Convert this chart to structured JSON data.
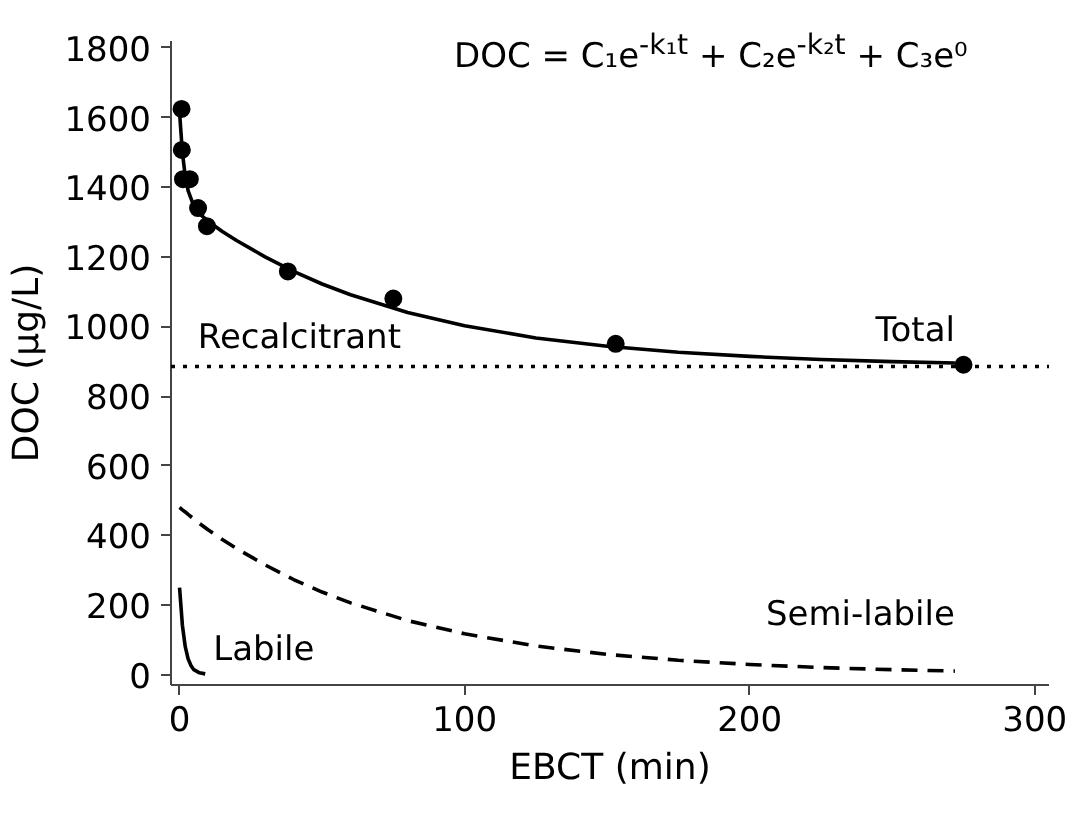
{
  "chart_data": {
    "type": "line",
    "xlabel": "EBCT (min)",
    "ylabel": "DOC (µg/L)",
    "xlim": [
      -3,
      305
    ],
    "ylim": [
      -30,
      1820
    ],
    "xticks": [
      0,
      100,
      200,
      300
    ],
    "yticks": [
      0,
      200,
      400,
      600,
      800,
      1000,
      1200,
      1400,
      1600,
      1800
    ],
    "grid": false,
    "series": [
      {
        "type": "scatter",
        "marker": "circle",
        "color": "#000000",
        "x": [
          0.7,
          0.8,
          1.2,
          3.6,
          6.5,
          9.6,
          38,
          75,
          153,
          275
        ],
        "values": [
          1625,
          1507,
          1423,
          1423,
          1340,
          1288,
          1158,
          1080,
          950,
          890
        ]
      },
      {
        "line_style": "solid",
        "color": "#000000",
        "x": [
          0,
          1,
          2,
          3,
          5,
          7,
          10,
          15,
          20,
          30,
          40,
          50,
          60,
          80,
          100,
          125,
          150,
          175,
          200,
          225,
          250,
          272
        ],
        "values": [
          1615,
          1499,
          1432,
          1390,
          1346,
          1324,
          1302,
          1273,
          1247,
          1200,
          1158,
          1122,
          1091,
          1040,
          1002,
          967,
          943,
          926,
          914,
          905,
          899,
          895
        ]
      },
      {
        "line_style": "dashed",
        "color": "#000000",
        "x": [
          0,
          1,
          2,
          3,
          5,
          7,
          10,
          15,
          20,
          30,
          40,
          50,
          60,
          80,
          100,
          125,
          150,
          175,
          200,
          225,
          250,
          272
        ],
        "values": [
          480,
          473,
          467,
          460,
          447,
          434,
          416,
          388,
          362,
          315,
          273,
          237,
          206,
          155,
          117,
          82,
          58,
          41,
          29,
          20,
          14,
          10
        ]
      },
      {
        "line_style": "solid",
        "color": "#000000",
        "x": [
          0,
          1,
          2,
          3,
          4,
          5,
          7,
          9
        ],
        "values": [
          250,
          141,
          80,
          45,
          26,
          14,
          5,
          2
        ]
      }
    ],
    "ref_lines": [
      {
        "axis": "y",
        "value": 885,
        "color": "#000000",
        "line_style": "dotted"
      }
    ],
    "annotations": [
      {
        "text": "DOC = C₁e$^{-k₁t}$ + C₂e$^{-k₂t}$ + C₃e⁰"
      },
      {
        "text": "Recalcitrant",
        "x": 5,
        "y": 885
      },
      {
        "text": "Total",
        "x": 272,
        "y": 895
      },
      {
        "text": "Semi-labile",
        "x": 272,
        "y": 10
      },
      {
        "text": "Labile",
        "x": 9,
        "y": 2
      }
    ]
  }
}
